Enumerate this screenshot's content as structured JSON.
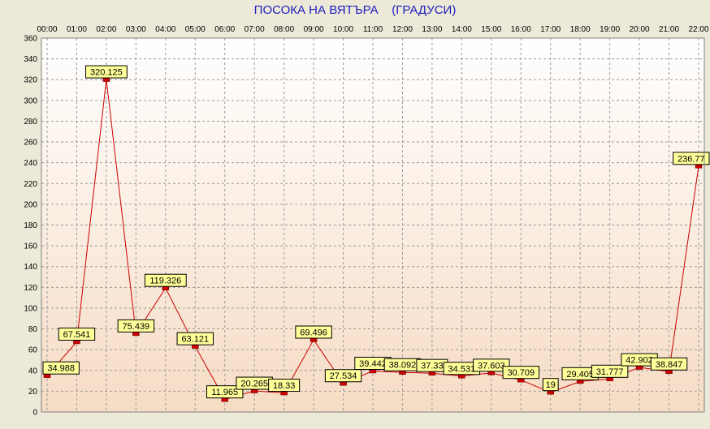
{
  "chart_data": {
    "type": "line",
    "title": "ПОСОКА НА ВЯТЪРА    (ГРАДУСИ)",
    "xlabel": "",
    "ylabel": "",
    "categories": [
      "00:00",
      "01:00",
      "02:00",
      "03:00",
      "04:00",
      "05:00",
      "06:00",
      "07:00",
      "08:00",
      "09:00",
      "10:00",
      "11:00",
      "12:00",
      "13:00",
      "14:00",
      "15:00",
      "16:00",
      "17:00",
      "18:00",
      "19:00",
      "20:00",
      "21:00",
      "22:00"
    ],
    "series": [
      {
        "values": [
          34.988,
          67.541,
          320.125,
          75.439,
          119.326,
          63.121,
          11.965,
          20.265,
          18.33,
          69.496,
          27.534,
          39.442,
          38.092,
          37.33,
          34.531,
          37.603,
          30.709,
          19,
          29.405,
          31.777,
          42.902,
          38.847,
          236.77
        ],
        "labels": [
          "34.988",
          "67.541",
          "320.125",
          "75.439",
          "119.326",
          "63.121",
          "11.965",
          "20.265",
          "18.33",
          "69.496",
          "27.534",
          "39.442",
          "38.092",
          "37.33",
          "34.531",
          "37.603",
          "30.709",
          "19",
          "29.405",
          "31.777",
          "42.902",
          "38.847",
          "236.77"
        ],
        "color": "#CC0000"
      }
    ],
    "ylim": [
      0,
      360
    ],
    "yticks": [
      0,
      20,
      40,
      60,
      80,
      100,
      120,
      140,
      160,
      180,
      200,
      220,
      240,
      260,
      280,
      300,
      320,
      340,
      360
    ],
    "grid": true,
    "legend": "none",
    "colors": {
      "background": "#ECE9D8",
      "plot_top": "#FFFFFF",
      "plot_bottom": "#F6DCC4",
      "grid": "#9A9A9A",
      "line": "#CC0000",
      "marker": "#CC0000",
      "label_fill": "#FFFF99",
      "title": "#2020C0"
    }
  }
}
